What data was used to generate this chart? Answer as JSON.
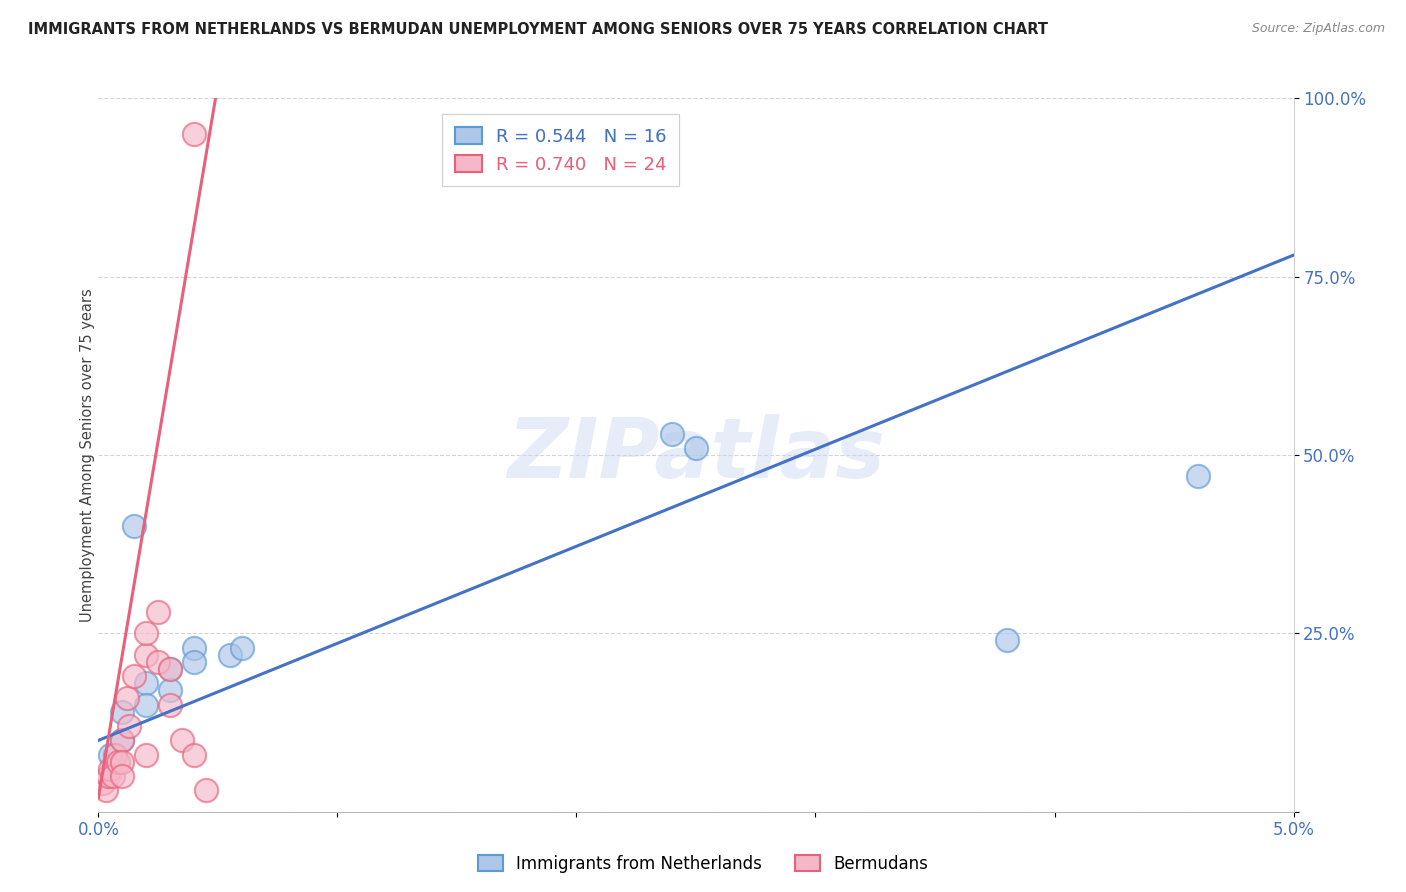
{
  "title": "IMMIGRANTS FROM NETHERLANDS VS BERMUDAN UNEMPLOYMENT AMONG SENIORS OVER 75 YEARS CORRELATION CHART",
  "source": "Source: ZipAtlas.com",
  "ylabel": "Unemployment Among Seniors over 75 years",
  "legend_label_blue": "Immigrants from Netherlands",
  "legend_label_pink": "Bermudans",
  "R_blue": 0.544,
  "N_blue": 16,
  "R_pink": 0.74,
  "N_pink": 24,
  "xlim": [
    0.0,
    0.05
  ],
  "ylim": [
    0.0,
    1.0
  ],
  "xticks": [
    0.0,
    0.01,
    0.02,
    0.03,
    0.04,
    0.05
  ],
  "xticklabels": [
    "0.0%",
    "",
    "",
    "",
    "",
    "5.0%"
  ],
  "yticks": [
    0.0,
    0.25,
    0.5,
    0.75,
    1.0
  ],
  "yticklabels": [
    "",
    "25.0%",
    "50.0%",
    "75.0%",
    "100.0%"
  ],
  "blue_fill": "#aec6e8",
  "pink_fill": "#f5b8c8",
  "blue_edge": "#5b9bd5",
  "pink_edge": "#e8607a",
  "blue_line_color": "#4472c4",
  "pink_line_color": "#e8607a",
  "watermark": "ZIPatlas",
  "blue_scatter_x": [
    0.0005,
    0.001,
    0.001,
    0.0015,
    0.002,
    0.002,
    0.003,
    0.003,
    0.004,
    0.004,
    0.0055,
    0.006,
    0.024,
    0.025,
    0.038,
    0.046
  ],
  "blue_scatter_y": [
    0.08,
    0.1,
    0.14,
    0.4,
    0.18,
    0.15,
    0.2,
    0.17,
    0.23,
    0.21,
    0.22,
    0.23,
    0.53,
    0.51,
    0.24,
    0.47
  ],
  "pink_scatter_x": [
    0.0002,
    0.0003,
    0.0004,
    0.0005,
    0.0006,
    0.0007,
    0.0008,
    0.001,
    0.001,
    0.001,
    0.0012,
    0.0013,
    0.0015,
    0.002,
    0.002,
    0.002,
    0.0025,
    0.0025,
    0.003,
    0.003,
    0.0035,
    0.004,
    0.004,
    0.0045
  ],
  "pink_scatter_y": [
    0.04,
    0.03,
    0.05,
    0.06,
    0.05,
    0.08,
    0.07,
    0.1,
    0.07,
    0.05,
    0.16,
    0.12,
    0.19,
    0.08,
    0.22,
    0.25,
    0.28,
    0.21,
    0.15,
    0.2,
    0.1,
    0.95,
    0.08,
    0.03
  ],
  "blue_line_x": [
    0.0,
    0.05
  ],
  "blue_line_y": [
    0.1,
    0.78
  ],
  "pink_line_x": [
    0.0,
    0.005
  ],
  "pink_line_y": [
    0.02,
    1.02
  ]
}
